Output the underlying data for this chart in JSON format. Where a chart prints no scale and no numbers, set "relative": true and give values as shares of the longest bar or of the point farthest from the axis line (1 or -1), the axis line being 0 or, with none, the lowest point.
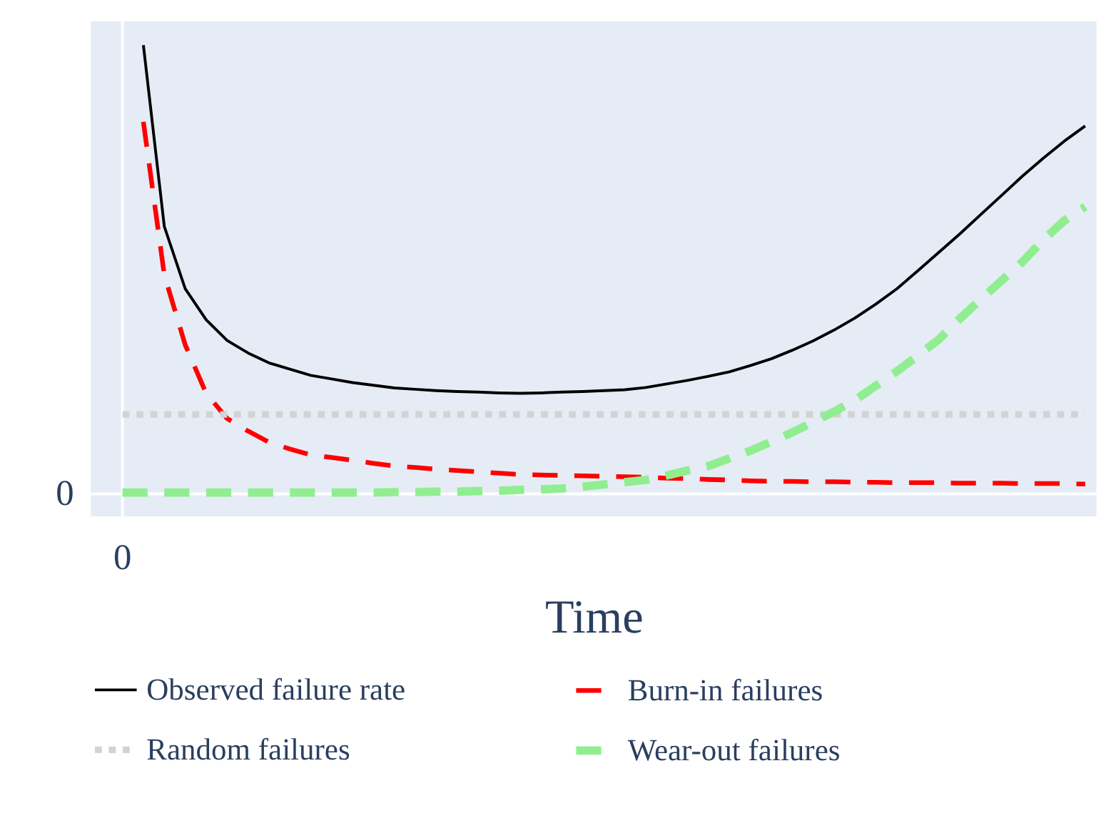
{
  "chart_data": {
    "type": "line",
    "xlabel": "Time",
    "relative": true,
    "legend": "bottom",
    "annotations": [
      "0",
      "0"
    ],
    "categories": [
      null,
      null,
      null,
      null,
      null,
      null,
      null,
      null,
      null,
      null,
      null,
      null,
      null,
      null,
      null,
      null,
      null,
      null,
      null,
      null,
      null,
      null,
      null,
      null,
      null,
      null,
      null,
      null,
      null,
      null,
      null,
      null,
      null,
      null,
      null,
      null,
      null,
      null,
      null,
      null,
      null,
      null,
      null,
      null,
      null,
      null,
      null
    ],
    "series": [
      {
        "name": "Observed failure rate",
        "color": "#000000",
        "line_style": "solid",
        "values": [
          null,
          1.0,
          0.596,
          0.457,
          0.388,
          0.342,
          0.314,
          0.292,
          0.278,
          0.264,
          0.256,
          0.248,
          0.242,
          0.236,
          0.233,
          0.23,
          0.228,
          0.227,
          0.225,
          0.224,
          0.225,
          0.227,
          0.228,
          0.23,
          0.232,
          0.237,
          0.245,
          0.253,
          0.262,
          0.272,
          0.286,
          0.301,
          0.32,
          0.341,
          0.365,
          0.392,
          0.423,
          0.457,
          0.497,
          0.538,
          0.579,
          0.622,
          0.665,
          0.708,
          0.748,
          0.786,
          0.82
        ]
      },
      {
        "name": "Burn-in failures",
        "color": "#ff0000",
        "line_style": "dashed",
        "values": [
          null,
          0.829,
          0.488,
          0.332,
          0.224,
          0.168,
          0.14,
          0.115,
          0.1,
          0.087,
          0.081,
          0.075,
          0.068,
          0.062,
          0.059,
          0.055,
          0.052,
          0.049,
          0.046,
          0.043,
          0.042,
          0.041,
          0.04,
          0.039,
          0.038,
          0.037,
          0.035,
          0.034,
          0.032,
          0.031,
          0.029,
          0.028,
          0.028,
          0.027,
          0.027,
          0.026,
          0.026,
          0.025,
          0.025,
          0.025,
          0.024,
          0.024,
          0.024,
          0.023,
          0.023,
          0.023,
          0.022
        ]
      },
      {
        "name": "Random failures",
        "color": "#d3d3d3",
        "line_style": "dotted",
        "values": [
          0.177,
          0.177,
          0.177,
          0.177,
          0.177,
          0.177,
          0.177,
          0.177,
          0.177,
          0.177,
          0.177,
          0.177,
          0.177,
          0.177,
          0.177,
          0.177,
          0.177,
          0.177,
          0.177,
          0.177,
          0.177,
          0.177,
          0.177,
          0.177,
          0.177,
          0.177,
          0.177,
          0.177,
          0.177,
          0.177,
          0.177,
          0.177,
          0.177,
          0.177,
          0.177,
          0.177,
          0.177,
          0.177,
          0.177,
          0.177,
          0.177,
          0.177,
          0.177,
          0.177,
          0.177,
          0.177,
          0.177
        ]
      },
      {
        "name": "Wear-out failures",
        "color": "#90ee90",
        "line_style": "dashed",
        "values": [
          0.003,
          0.003,
          0.003,
          0.003,
          0.003,
          0.003,
          0.003,
          0.003,
          0.003,
          0.003,
          0.003,
          0.003,
          0.003,
          0.004,
          0.004,
          0.005,
          0.005,
          0.006,
          0.007,
          0.009,
          0.01,
          0.012,
          0.016,
          0.021,
          0.026,
          0.031,
          0.041,
          0.052,
          0.062,
          0.079,
          0.096,
          0.116,
          0.137,
          0.16,
          0.183,
          0.209,
          0.241,
          0.273,
          0.308,
          0.344,
          0.39,
          0.433,
          0.475,
          0.517,
          0.566,
          0.609,
          0.64
        ]
      }
    ]
  }
}
